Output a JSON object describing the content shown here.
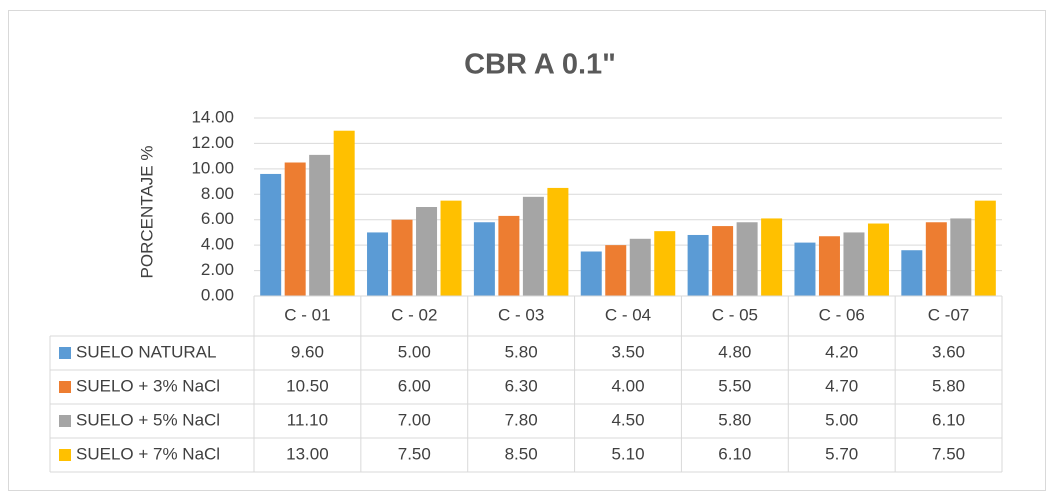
{
  "chart_data": {
    "type": "bar",
    "title": "CBR A 0.1\"",
    "y_label": "PORCENTAJE %",
    "categories": [
      "C - 01",
      "C - 02",
      "C - 03",
      "C - 04",
      "C - 05",
      "C - 06",
      "C -07"
    ],
    "series": [
      {
        "name": "SUELO NATURAL",
        "color": "#5b9bd5",
        "values": [
          9.6,
          5.0,
          5.8,
          3.5,
          4.8,
          4.2,
          3.6
        ],
        "value_labels": [
          "9.60",
          "5.00",
          "5.80",
          "3.50",
          "4.80",
          "4.20",
          "3.60"
        ]
      },
      {
        "name": "SUELO + 3% NaCl",
        "color": "#ed7d31",
        "values": [
          10.5,
          6.0,
          6.3,
          4.0,
          5.5,
          4.7,
          5.8
        ],
        "value_labels": [
          "10.50",
          "6.00",
          "6.30",
          "4.00",
          "5.50",
          "4.70",
          "5.80"
        ]
      },
      {
        "name": "SUELO + 5% NaCl",
        "color": "#a5a5a5",
        "values": [
          11.1,
          7.0,
          7.8,
          4.5,
          5.8,
          5.0,
          6.1
        ],
        "value_labels": [
          "11.10",
          "7.00",
          "7.80",
          "4.50",
          "5.80",
          "5.00",
          "6.10"
        ]
      },
      {
        "name": "SUELO + 7% NaCl",
        "color": "#ffc000",
        "values": [
          13.0,
          7.5,
          8.5,
          5.1,
          6.1,
          5.7,
          7.5
        ],
        "value_labels": [
          "13.00",
          "7.50",
          "8.50",
          "5.10",
          "6.10",
          "5.70",
          "7.50"
        ]
      }
    ],
    "ylim": [
      0,
      14
    ],
    "yticks": [
      {
        "value": 0,
        "label": "0.00"
      },
      {
        "value": 2,
        "label": "2.00"
      },
      {
        "value": 4,
        "label": "4.00"
      },
      {
        "value": 6,
        "label": "6.00"
      },
      {
        "value": 8,
        "label": "8.00"
      },
      {
        "value": 10,
        "label": "10.00"
      },
      {
        "value": 12,
        "label": "12.00"
      },
      {
        "value": 14,
        "label": "14.00"
      }
    ]
  }
}
